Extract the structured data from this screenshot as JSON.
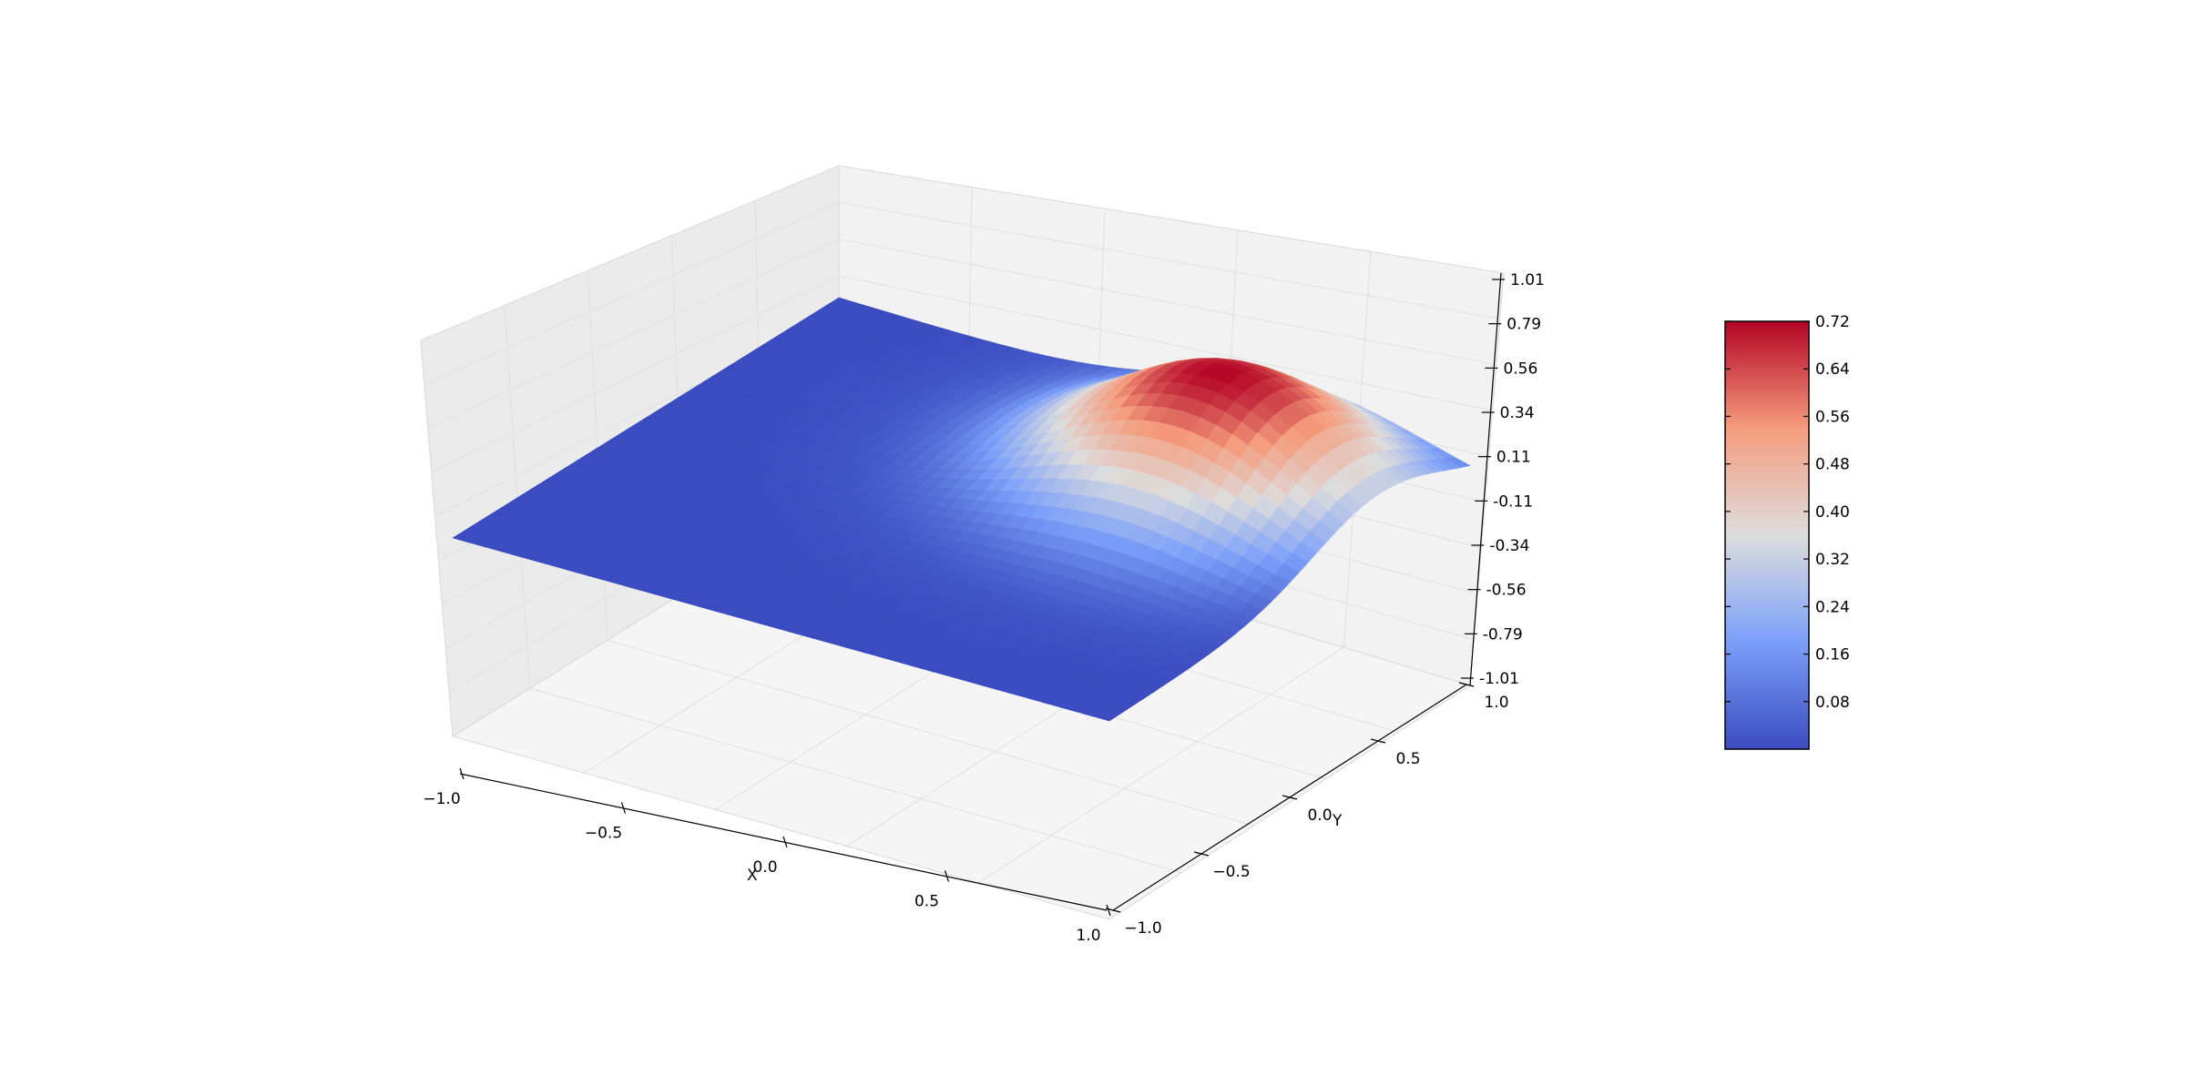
{
  "chart_data": {
    "type": "surface3d",
    "title": "",
    "xlabel": "X",
    "ylabel": "Y",
    "zlabel": "",
    "x_ticks": [
      "−1.0",
      "−0.5",
      "0.0",
      "0.5",
      "1.0"
    ],
    "y_ticks": [
      "−1.0",
      "−0.5",
      "0.0",
      "0.5",
      "1.0"
    ],
    "z_ticks": [
      "-1.01",
      "-0.79",
      "-0.56",
      "-0.34",
      "-0.11",
      "0.11",
      "0.34",
      "0.56",
      "0.79",
      "1.01"
    ],
    "xlim": [
      -1.0,
      1.0
    ],
    "ylim": [
      -1.0,
      1.0
    ],
    "zlim": [
      -1.01,
      1.01
    ],
    "colormap": "coolwarm",
    "colorbar": {
      "min": 0.0,
      "max": 0.72,
      "ticks": [
        "0.08",
        "0.16",
        "0.24",
        "0.32",
        "0.40",
        "0.48",
        "0.56",
        "0.64",
        "0.72"
      ]
    },
    "surface": {
      "description_of_shape": "bump centered near (0.5, 0.5)",
      "peak_z": 0.72,
      "base_z": 0.0,
      "peak_x": 0.5,
      "peak_y": 0.5
    },
    "grid": true,
    "colorbar_placement": "right"
  }
}
